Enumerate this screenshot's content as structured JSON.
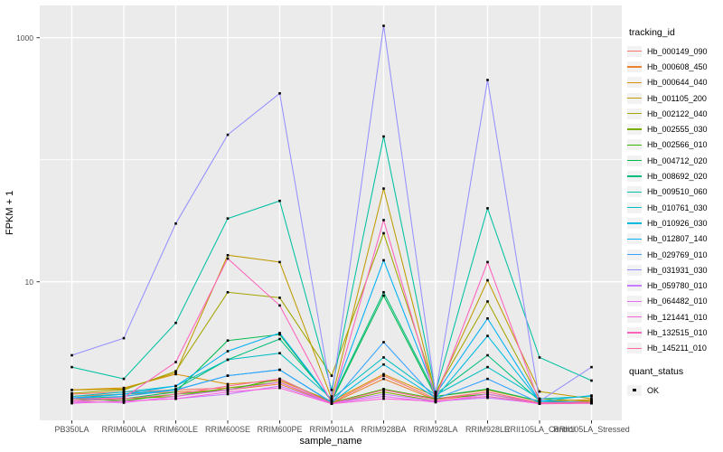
{
  "chart_data": {
    "type": "line",
    "xlabel": "sample_name",
    "ylabel": "FPKM + 1",
    "y_scale": "log10",
    "y_breaks": [
      {
        "value": 1000,
        "label": "1000"
      },
      {
        "value": 10,
        "label": "10"
      }
    ],
    "y_minor_breaks": [
      100
    ],
    "grid": true,
    "legend_position": "right",
    "legend_title": "tracking_id",
    "quant_legend": {
      "title": "quant_status",
      "items": [
        "OK"
      ]
    },
    "panel_bg": "#EBEBEB",
    "grid_color": "#FFFFFF",
    "point_color": "#000000",
    "axis_text_color": "#4D4D4D",
    "categories": [
      "PB350LA",
      "RRIM600LA",
      "RRIM600LE",
      "RRIM600SE",
      "RRIM600PE",
      "RRIM901LA",
      "RRIM928BA",
      "RRIM928LA",
      "RRIM928LE",
      "RRII105LA_Control",
      "RRII105LA_Stressed"
    ],
    "series": [
      {
        "name": "Hb_000149_090",
        "color": "#F8766D",
        "values": [
          1.2,
          1.25,
          1.3,
          1.35,
          1.5,
          1.02,
          1.7,
          1.1,
          1.25,
          1.02,
          1.05
        ]
      },
      {
        "name": "Hb_000608_450",
        "color": "#EA8331",
        "values": [
          1.15,
          1.2,
          1.25,
          1.3,
          1.45,
          1.01,
          1.6,
          1.08,
          1.2,
          1.01,
          1.04
        ]
      },
      {
        "name": "Hb_000644_040",
        "color": "#D89000",
        "values": [
          1.3,
          1.35,
          1.75,
          1.45,
          1.55,
          1.05,
          1.75,
          1.15,
          1.3,
          1.05,
          1.08
        ]
      },
      {
        "name": "Hb_001105_200",
        "color": "#C09B00",
        "values": [
          1.3,
          1.32,
          1.8,
          16.5,
          14.5,
          1.1,
          58,
          1.2,
          10.3,
          1.26,
          1.1
        ]
      },
      {
        "name": "Hb_002122_040",
        "color": "#A3A500",
        "values": [
          1.22,
          1.3,
          1.85,
          8.2,
          7.4,
          1.7,
          25,
          1.25,
          6.9,
          1.1,
          1.05
        ]
      },
      {
        "name": "Hb_002555_030",
        "color": "#7CAE00",
        "values": [
          1.05,
          1.1,
          1.15,
          1.35,
          1.5,
          1.01,
          1.25,
          1.05,
          1.15,
          1.01,
          1.02
        ]
      },
      {
        "name": "Hb_002566_010",
        "color": "#39B600",
        "values": [
          1.1,
          1.06,
          1.2,
          1.3,
          1.6,
          1.02,
          1.32,
          1.1,
          1.2,
          1.02,
          1.01
        ]
      },
      {
        "name": "Hb_004712_020",
        "color": "#00BB4E",
        "values": [
          1.06,
          1.1,
          1.25,
          3.3,
          3.7,
          1.05,
          7.7,
          1.15,
          1.32,
          1.05,
          1.01
        ]
      },
      {
        "name": "Hb_008692_020",
        "color": "#00BF7D",
        "values": [
          1.1,
          1.15,
          1.32,
          2.3,
          3.4,
          1.08,
          8.2,
          1.2,
          2.5,
          1.06,
          1.02
        ]
      },
      {
        "name": "Hb_009510_060",
        "color": "#00C1A3",
        "values": [
          2.0,
          1.6,
          4.6,
          33,
          46,
          1.3,
          155,
          1.25,
          40,
          2.4,
          1.55
        ]
      },
      {
        "name": "Hb_010761_030",
        "color": "#00BFC4",
        "values": [
          1.15,
          1.25,
          1.4,
          2.3,
          2.6,
          1.1,
          2.4,
          1.18,
          2.0,
          1.1,
          1.15
        ]
      },
      {
        "name": "Hb_010926_030",
        "color": "#00BAE0",
        "values": [
          1.1,
          1.2,
          1.3,
          1.7,
          1.9,
          1.03,
          2.1,
          1.12,
          3.6,
          1.05,
          1.17
        ]
      },
      {
        "name": "Hb_012807_140",
        "color": "#00B0F6",
        "values": [
          1.12,
          1.2,
          1.4,
          2.7,
          3.8,
          1.06,
          15,
          1.2,
          5.0,
          1.05,
          1.03
        ]
      },
      {
        "name": "Hb_029769_010",
        "color": "#35A2FF",
        "values": [
          1.05,
          1.15,
          1.3,
          1.7,
          1.9,
          1.02,
          3.2,
          1.1,
          1.6,
          1.02,
          1.01
        ]
      },
      {
        "name": "Hb_031931_030",
        "color": "#9590FF",
        "values": [
          2.5,
          3.45,
          30,
          160,
          350,
          1.15,
          1250,
          1.2,
          450,
          1.05,
          2.0
        ]
      },
      {
        "name": "Hb_059780_010",
        "color": "#C77CFF",
        "values": [
          1.02,
          1.05,
          1.1,
          1.2,
          1.4,
          1.01,
          1.2,
          1.05,
          1.12,
          1.01,
          1.01
        ]
      },
      {
        "name": "Hb_064482_010",
        "color": "#E76BF3",
        "values": [
          1.05,
          1.02,
          1.15,
          1.3,
          1.5,
          1.01,
          1.15,
          1.03,
          1.2,
          1.01,
          1.02
        ]
      },
      {
        "name": "Hb_121441_010",
        "color": "#FA62DB",
        "values": [
          1.01,
          1.05,
          1.1,
          1.25,
          1.35,
          1.0,
          1.1,
          1.05,
          1.15,
          1.0,
          1.01
        ]
      },
      {
        "name": "Hb_132515_010",
        "color": "#FF62BC",
        "values": [
          1.1,
          1.12,
          2.2,
          15.5,
          6.4,
          1.02,
          32,
          1.1,
          14.5,
          1.02,
          1.03
        ]
      },
      {
        "name": "Hb_145211_010",
        "color": "#FF6A98",
        "values": [
          1.06,
          1.1,
          1.2,
          1.4,
          1.6,
          1.01,
          1.3,
          1.08,
          1.25,
          1.01,
          1.02
        ]
      }
    ]
  }
}
